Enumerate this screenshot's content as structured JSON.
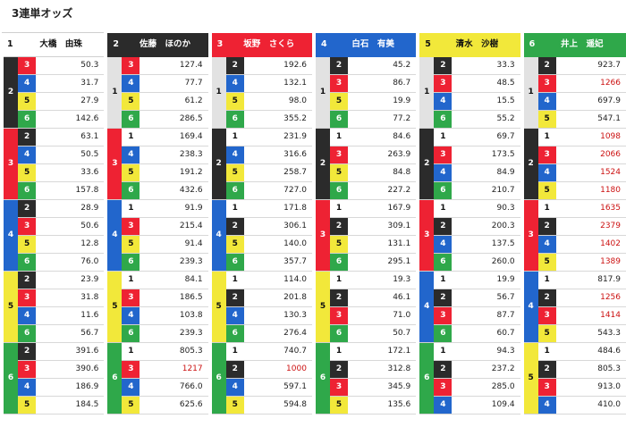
{
  "title": "3連単オッズ",
  "colors": {
    "1": "#ffffff",
    "2": "#2b2b2b",
    "3": "#ee2233",
    "4": "#2266cc",
    "5": "#f2e83a",
    "6": "#2fa84a",
    "high_odds": "#cc1111"
  },
  "racers": [
    {
      "num": "1",
      "name": "大橋　由珠"
    },
    {
      "num": "2",
      "name": "佐藤　ほのか"
    },
    {
      "num": "3",
      "name": "坂野　さくら"
    },
    {
      "num": "4",
      "name": "白石　有美"
    },
    {
      "num": "5",
      "name": "清水　沙樹"
    },
    {
      "num": "6",
      "name": "井上　遥妃"
    }
  ],
  "rows": [
    {
      "cells": [
        {
          "b2": "2",
          "b3": "3",
          "o": "50.3"
        },
        {
          "b2": "1",
          "b3": "3",
          "o": "127.4"
        },
        {
          "b2": "1",
          "b3": "2",
          "o": "192.6"
        },
        {
          "b2": "1",
          "b3": "2",
          "o": "45.2"
        },
        {
          "b2": "1",
          "b3": "2",
          "o": "33.3"
        },
        {
          "b2": "1",
          "b3": "2",
          "o": "923.7"
        }
      ]
    },
    {
      "cells": [
        {
          "b2": "2",
          "b3": "4",
          "o": "31.7"
        },
        {
          "b2": "1",
          "b3": "4",
          "o": "77.7"
        },
        {
          "b2": "1",
          "b3": "4",
          "o": "132.1"
        },
        {
          "b2": "1",
          "b3": "3",
          "o": "86.7"
        },
        {
          "b2": "1",
          "b3": "3",
          "o": "48.5"
        },
        {
          "b2": "1",
          "b3": "3",
          "o": "1266"
        }
      ]
    },
    {
      "cells": [
        {
          "b2": "2",
          "b3": "5",
          "o": "27.9"
        },
        {
          "b2": "1",
          "b3": "5",
          "o": "61.2"
        },
        {
          "b2": "1",
          "b3": "5",
          "o": "98.0"
        },
        {
          "b2": "1",
          "b3": "5",
          "o": "19.9"
        },
        {
          "b2": "1",
          "b3": "4",
          "o": "15.5"
        },
        {
          "b2": "1",
          "b3": "4",
          "o": "697.9"
        }
      ]
    },
    {
      "cells": [
        {
          "b2": "2",
          "b3": "6",
          "o": "142.6"
        },
        {
          "b2": "1",
          "b3": "6",
          "o": "286.5"
        },
        {
          "b2": "1",
          "b3": "6",
          "o": "355.2"
        },
        {
          "b2": "1",
          "b3": "6",
          "o": "77.2"
        },
        {
          "b2": "1",
          "b3": "6",
          "o": "55.2"
        },
        {
          "b2": "1",
          "b3": "5",
          "o": "547.1"
        }
      ]
    },
    {
      "cells": [
        {
          "b2": "3",
          "b3": "2",
          "o": "63.1"
        },
        {
          "b2": "3",
          "b3": "1",
          "o": "169.4"
        },
        {
          "b2": "2",
          "b3": "1",
          "o": "231.9"
        },
        {
          "b2": "2",
          "b3": "1",
          "o": "84.6"
        },
        {
          "b2": "2",
          "b3": "1",
          "o": "69.7"
        },
        {
          "b2": "2",
          "b3": "1",
          "o": "1098"
        }
      ]
    },
    {
      "cells": [
        {
          "b2": "3",
          "b3": "4",
          "o": "50.5"
        },
        {
          "b2": "3",
          "b3": "4",
          "o": "238.3"
        },
        {
          "b2": "2",
          "b3": "4",
          "o": "316.6"
        },
        {
          "b2": "2",
          "b3": "3",
          "o": "263.9"
        },
        {
          "b2": "2",
          "b3": "3",
          "o": "173.5"
        },
        {
          "b2": "2",
          "b3": "3",
          "o": "2066"
        }
      ]
    },
    {
      "cells": [
        {
          "b2": "3",
          "b3": "5",
          "o": "33.6"
        },
        {
          "b2": "3",
          "b3": "5",
          "o": "191.2"
        },
        {
          "b2": "2",
          "b3": "5",
          "o": "258.7"
        },
        {
          "b2": "2",
          "b3": "5",
          "o": "84.8"
        },
        {
          "b2": "2",
          "b3": "4",
          "o": "84.9"
        },
        {
          "b2": "2",
          "b3": "4",
          "o": "1524"
        }
      ]
    },
    {
      "cells": [
        {
          "b2": "3",
          "b3": "6",
          "o": "157.8"
        },
        {
          "b2": "3",
          "b3": "6",
          "o": "432.6"
        },
        {
          "b2": "2",
          "b3": "6",
          "o": "727.0"
        },
        {
          "b2": "2",
          "b3": "6",
          "o": "227.2"
        },
        {
          "b2": "2",
          "b3": "6",
          "o": "210.7"
        },
        {
          "b2": "2",
          "b3": "5",
          "o": "1180"
        }
      ]
    },
    {
      "cells": [
        {
          "b2": "4",
          "b3": "2",
          "o": "28.9"
        },
        {
          "b2": "4",
          "b3": "1",
          "o": "91.9"
        },
        {
          "b2": "4",
          "b3": "1",
          "o": "171.8"
        },
        {
          "b2": "3",
          "b3": "1",
          "o": "167.9"
        },
        {
          "b2": "3",
          "b3": "1",
          "o": "90.3"
        },
        {
          "b2": "3",
          "b3": "1",
          "o": "1635"
        }
      ]
    },
    {
      "cells": [
        {
          "b2": "4",
          "b3": "3",
          "o": "50.6"
        },
        {
          "b2": "4",
          "b3": "3",
          "o": "215.4"
        },
        {
          "b2": "4",
          "b3": "2",
          "o": "306.1"
        },
        {
          "b2": "3",
          "b3": "2",
          "o": "309.1"
        },
        {
          "b2": "3",
          "b3": "2",
          "o": "200.3"
        },
        {
          "b2": "3",
          "b3": "2",
          "o": "2379"
        }
      ]
    },
    {
      "cells": [
        {
          "b2": "4",
          "b3": "5",
          "o": "12.8"
        },
        {
          "b2": "4",
          "b3": "5",
          "o": "91.4"
        },
        {
          "b2": "4",
          "b3": "5",
          "o": "140.0"
        },
        {
          "b2": "3",
          "b3": "5",
          "o": "131.1"
        },
        {
          "b2": "3",
          "b3": "4",
          "o": "137.5"
        },
        {
          "b2": "3",
          "b3": "4",
          "o": "1402"
        }
      ]
    },
    {
      "cells": [
        {
          "b2": "4",
          "b3": "6",
          "o": "76.0"
        },
        {
          "b2": "4",
          "b3": "6",
          "o": "239.3"
        },
        {
          "b2": "4",
          "b3": "6",
          "o": "357.7"
        },
        {
          "b2": "3",
          "b3": "6",
          "o": "295.1"
        },
        {
          "b2": "3",
          "b3": "6",
          "o": "260.0"
        },
        {
          "b2": "3",
          "b3": "5",
          "o": "1389"
        }
      ]
    },
    {
      "cells": [
        {
          "b2": "5",
          "b3": "2",
          "o": "23.9"
        },
        {
          "b2": "5",
          "b3": "1",
          "o": "84.1"
        },
        {
          "b2": "5",
          "b3": "1",
          "o": "114.0"
        },
        {
          "b2": "5",
          "b3": "1",
          "o": "19.3"
        },
        {
          "b2": "4",
          "b3": "1",
          "o": "19.9"
        },
        {
          "b2": "4",
          "b3": "1",
          "o": "817.9"
        }
      ]
    },
    {
      "cells": [
        {
          "b2": "5",
          "b3": "3",
          "o": "31.8"
        },
        {
          "b2": "5",
          "b3": "3",
          "o": "186.5"
        },
        {
          "b2": "5",
          "b3": "2",
          "o": "201.8"
        },
        {
          "b2": "5",
          "b3": "2",
          "o": "46.1"
        },
        {
          "b2": "4",
          "b3": "2",
          "o": "56.7"
        },
        {
          "b2": "4",
          "b3": "2",
          "o": "1256"
        }
      ]
    },
    {
      "cells": [
        {
          "b2": "5",
          "b3": "4",
          "o": "11.6"
        },
        {
          "b2": "5",
          "b3": "4",
          "o": "103.8"
        },
        {
          "b2": "5",
          "b3": "4",
          "o": "130.3"
        },
        {
          "b2": "5",
          "b3": "3",
          "o": "71.0"
        },
        {
          "b2": "4",
          "b3": "3",
          "o": "87.7"
        },
        {
          "b2": "4",
          "b3": "3",
          "o": "1414"
        }
      ]
    },
    {
      "cells": [
        {
          "b2": "5",
          "b3": "6",
          "o": "56.7"
        },
        {
          "b2": "5",
          "b3": "6",
          "o": "239.3"
        },
        {
          "b2": "5",
          "b3": "6",
          "o": "276.4"
        },
        {
          "b2": "5",
          "b3": "6",
          "o": "50.7"
        },
        {
          "b2": "4",
          "b3": "6",
          "o": "60.7"
        },
        {
          "b2": "4",
          "b3": "5",
          "o": "543.3"
        }
      ]
    },
    {
      "cells": [
        {
          "b2": "6",
          "b3": "2",
          "o": "391.6"
        },
        {
          "b2": "6",
          "b3": "1",
          "o": "805.3"
        },
        {
          "b2": "6",
          "b3": "1",
          "o": "740.7"
        },
        {
          "b2": "6",
          "b3": "1",
          "o": "172.1"
        },
        {
          "b2": "6",
          "b3": "1",
          "o": "94.3"
        },
        {
          "b2": "5",
          "b3": "1",
          "o": "484.6"
        }
      ]
    },
    {
      "cells": [
        {
          "b2": "6",
          "b3": "3",
          "o": "390.6"
        },
        {
          "b2": "6",
          "b3": "3",
          "o": "1217"
        },
        {
          "b2": "6",
          "b3": "2",
          "o": "1000"
        },
        {
          "b2": "6",
          "b3": "2",
          "o": "312.8"
        },
        {
          "b2": "6",
          "b3": "2",
          "o": "237.2"
        },
        {
          "b2": "5",
          "b3": "2",
          "o": "805.3"
        }
      ]
    },
    {
      "cells": [
        {
          "b2": "6",
          "b3": "4",
          "o": "186.9"
        },
        {
          "b2": "6",
          "b3": "4",
          "o": "766.0"
        },
        {
          "b2": "6",
          "b3": "4",
          "o": "597.1"
        },
        {
          "b2": "6",
          "b3": "3",
          "o": "345.9"
        },
        {
          "b2": "6",
          "b3": "3",
          "o": "285.0"
        },
        {
          "b2": "5",
          "b3": "3",
          "o": "913.0"
        }
      ]
    },
    {
      "cells": [
        {
          "b2": "6",
          "b3": "5",
          "o": "184.5"
        },
        {
          "b2": "6",
          "b3": "5",
          "o": "625.6"
        },
        {
          "b2": "6",
          "b3": "5",
          "o": "594.8"
        },
        {
          "b2": "6",
          "b3": "5",
          "o": "135.6"
        },
        {
          "b2": "6",
          "b3": "4",
          "o": "109.4"
        },
        {
          "b2": "5",
          "b3": "4",
          "o": "410.0"
        }
      ]
    }
  ]
}
